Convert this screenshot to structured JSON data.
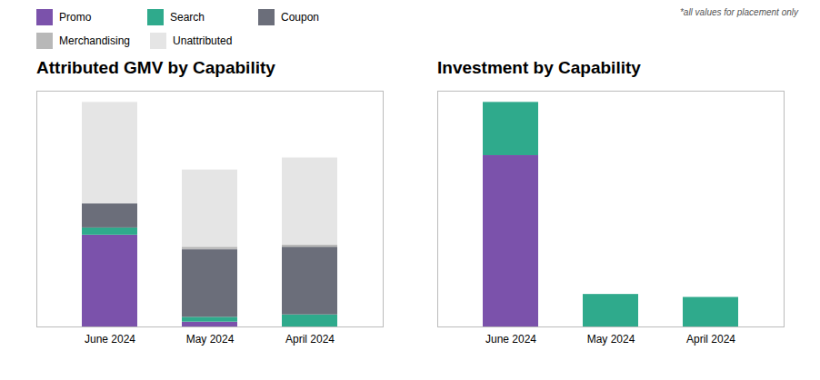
{
  "chart_data": [
    {
      "type": "bar",
      "stacked": true,
      "title": "Attributed GMV by Capability",
      "categories": [
        "June 2024",
        "May 2024",
        "April 2024"
      ],
      "series": [
        {
          "name": "Promo",
          "color": "#7b52ab",
          "values": [
            38,
            2,
            0
          ]
        },
        {
          "name": "Search",
          "color": "#2faa8c",
          "values": [
            3,
            2,
            5
          ]
        },
        {
          "name": "Coupon",
          "color": "#6b6e7a",
          "values": [
            10,
            28,
            28
          ]
        },
        {
          "name": "Merchandising",
          "color": "#b8b8b8",
          "values": [
            0,
            1,
            1
          ]
        },
        {
          "name": "Unattributed",
          "color": "#e5e5e5",
          "values": [
            42,
            32,
            36
          ]
        }
      ],
      "ylim": [
        0,
        97.65
      ],
      "tick_labels": "x",
      "legend": "upper left",
      "annotations": [
        "*all values for placement only"
      ]
    },
    {
      "type": "bar",
      "stacked": true,
      "title": "Investment by Capability",
      "categories": [
        "June 2024",
        "May 2024",
        "April 2024"
      ],
      "series": [
        {
          "name": "Promo",
          "color": "#7b52ab",
          "values": [
            58,
            0,
            0
          ]
        },
        {
          "name": "Search",
          "color": "#2faa8c",
          "values": [
            18,
            11,
            10
          ]
        }
      ],
      "ylim": [
        0,
        79.8
      ],
      "tick_labels": "x"
    }
  ]
}
